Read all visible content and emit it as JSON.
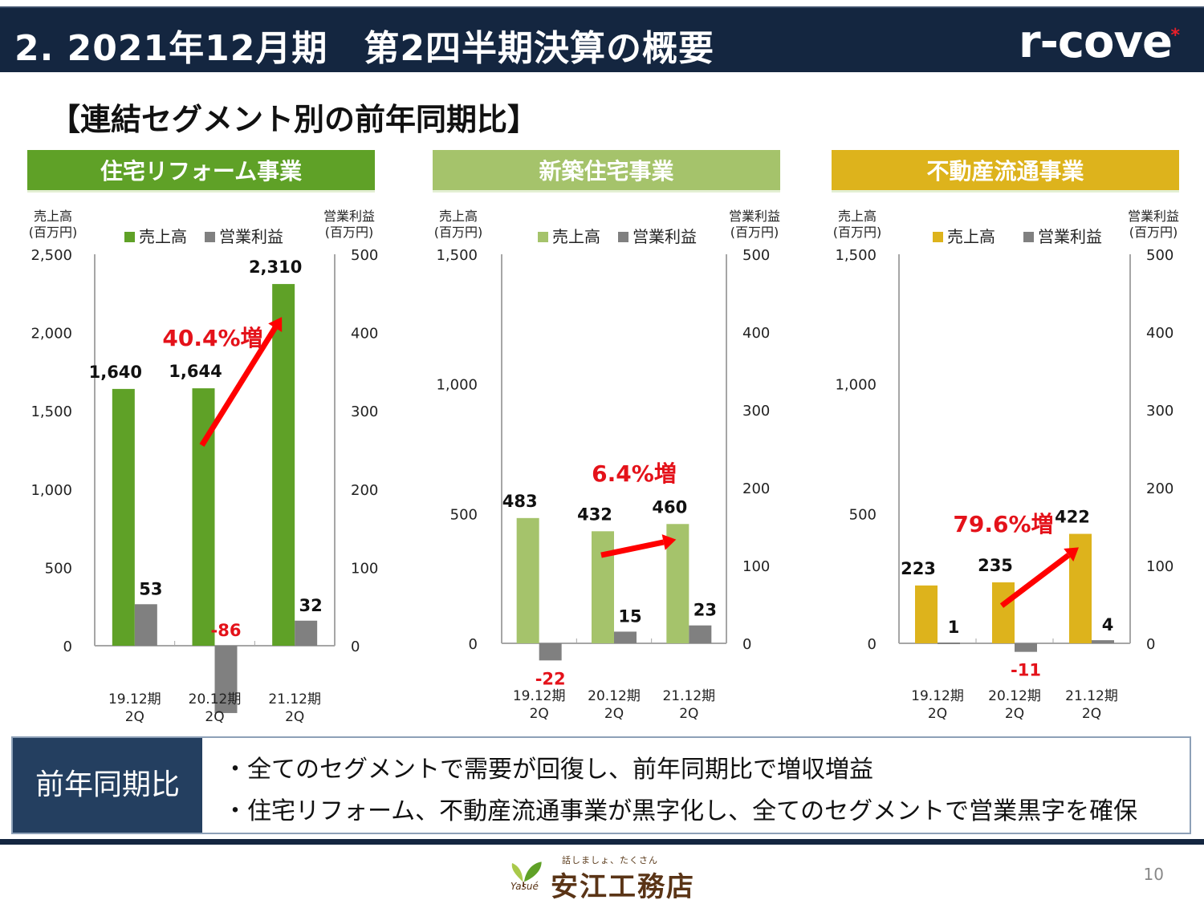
{
  "header": {
    "title": "2. 2021年12月期　第2四半期決算の概要",
    "logo_text": "r-cove",
    "logo_mark": "*"
  },
  "subtitle": "【連結セグメント別の前年同期比】",
  "colors": {
    "header_bg": "#142640",
    "reform": "#5fa127",
    "newbuild": "#a5c36b",
    "realestate": "#ddb31c",
    "profit": "#808080",
    "negative_label": "#e4121a",
    "arrow": "#ff0000",
    "summary_label_bg": "#243f60"
  },
  "chart_data": [
    {
      "type": "bar",
      "title": "住宅リフォーム事業",
      "categories": [
        "19.12期\n2Q",
        "20.12期\n2Q",
        "21.12期\n2Q"
      ],
      "category_lines": [
        [
          "19.12期",
          "2Q"
        ],
        [
          "20.12期",
          "2Q"
        ],
        [
          "21.12期",
          "2Q"
        ]
      ],
      "left_axis": {
        "label_lines": [
          "売上高",
          "(百万円)"
        ],
        "ylim": [
          0,
          2500
        ],
        "ticks": [
          0,
          500,
          1000,
          1500,
          2000,
          2500
        ],
        "tick_labels": [
          "0",
          "500",
          "1,000",
          "1,500",
          "2,000",
          "2,500"
        ]
      },
      "right_axis": {
        "label_lines": [
          "営業利益",
          "(百万円)"
        ],
        "ylim": [
          0,
          500
        ],
        "ticks": [
          0,
          100,
          200,
          300,
          400,
          500
        ],
        "tick_labels": [
          "0",
          "100",
          "200",
          "300",
          "400",
          "500"
        ]
      },
      "series": [
        {
          "name": "売上高",
          "axis": "left",
          "color": "#5fa127",
          "values": [
            1640,
            1644,
            2310
          ],
          "labels": [
            "1,640",
            "1,644",
            "2,310"
          ]
        },
        {
          "name": "営業利益",
          "axis": "right",
          "color": "#808080",
          "values": [
            53,
            -86,
            32
          ],
          "labels": [
            "53",
            "-86",
            "32"
          ]
        }
      ],
      "legend": [
        "売上高",
        "営業利益"
      ],
      "legend_position": "top",
      "annotation": {
        "text": "40.4%増",
        "from_category": 1,
        "to_category": 2
      }
    },
    {
      "type": "bar",
      "title": "新築住宅事業",
      "categories": [
        "19.12期\n2Q",
        "20.12期\n2Q",
        "21.12期\n2Q"
      ],
      "category_lines": [
        [
          "19.12期",
          "2Q"
        ],
        [
          "20.12期",
          "2Q"
        ],
        [
          "21.12期",
          "2Q"
        ]
      ],
      "left_axis": {
        "label_lines": [
          "売上高",
          "(百万円)"
        ],
        "ylim": [
          0,
          1500
        ],
        "ticks": [
          0,
          500,
          1000,
          1500
        ],
        "tick_labels": [
          "0",
          "500",
          "1,000",
          "1,500"
        ]
      },
      "right_axis": {
        "label_lines": [
          "営業利益",
          "(百万円)"
        ],
        "ylim": [
          0,
          500
        ],
        "ticks": [
          0,
          100,
          200,
          300,
          400,
          500
        ],
        "tick_labels": [
          "0",
          "100",
          "200",
          "300",
          "400",
          "500"
        ]
      },
      "series": [
        {
          "name": "売上高",
          "axis": "left",
          "color": "#a5c36b",
          "values": [
            483,
            432,
            460
          ],
          "labels": [
            "483",
            "432",
            "460"
          ]
        },
        {
          "name": "営業利益",
          "axis": "right",
          "color": "#808080",
          "values": [
            -22,
            15,
            23
          ],
          "labels": [
            "-22",
            "15",
            "23"
          ]
        }
      ],
      "legend": [
        "売上高",
        "営業利益"
      ],
      "legend_position": "top",
      "annotation": {
        "text": "6.4%増",
        "from_category": 1,
        "to_category": 2
      }
    },
    {
      "type": "bar",
      "title": "不動産流通事業",
      "categories": [
        "19.12期\n2Q",
        "20.12期\n2Q",
        "21.12期\n2Q"
      ],
      "category_lines": [
        [
          "19.12期",
          "2Q"
        ],
        [
          "20.12期",
          "2Q"
        ],
        [
          "21.12期",
          "2Q"
        ]
      ],
      "left_axis": {
        "label_lines": [
          "売上高",
          "(百万円)"
        ],
        "ylim": [
          0,
          1500
        ],
        "ticks": [
          0,
          500,
          1000,
          1500
        ],
        "tick_labels": [
          "0",
          "500",
          "1,000",
          "1,500"
        ]
      },
      "right_axis": {
        "label_lines": [
          "営業利益",
          "(百万円)"
        ],
        "ylim": [
          0,
          500
        ],
        "ticks": [
          0,
          100,
          200,
          300,
          400,
          500
        ],
        "tick_labels": [
          "0",
          "100",
          "200",
          "300",
          "400",
          "500"
        ]
      },
      "series": [
        {
          "name": "売上高",
          "axis": "left",
          "color": "#ddb31c",
          "values": [
            223,
            235,
            422
          ],
          "labels": [
            "223",
            "235",
            "422"
          ]
        },
        {
          "name": "営業利益",
          "axis": "right",
          "color": "#808080",
          "values": [
            1,
            -11,
            4
          ],
          "labels": [
            "1",
            "-11",
            "4"
          ]
        }
      ],
      "legend": [
        "売上高",
        "営業利益"
      ],
      "legend_position": "top",
      "annotation": {
        "text": "79.6%増",
        "from_category": 1,
        "to_category": 2
      }
    }
  ],
  "summary": {
    "label": "前年同期比",
    "lines": [
      "・全てのセグメントで需要が回復し、前年同期比で増収増益",
      "・住宅リフォーム、不動産流通事業が黒字化し、全てのセグメントで営業黒字を確保"
    ]
  },
  "footer": {
    "tagline": "話しましょ、たくさん",
    "brand": "安江工務店",
    "brand_script": "Yasué",
    "page_number": "10"
  }
}
